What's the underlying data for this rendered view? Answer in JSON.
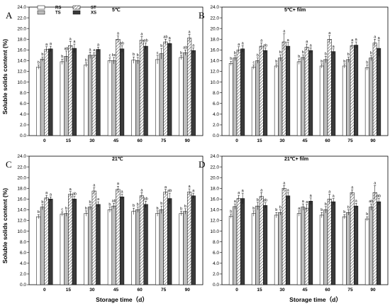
{
  "figure": {
    "x_title": "Storage time（d）",
    "y_title": "Soluble solids content (%)"
  },
  "legend": [
    {
      "label": "RS",
      "series": 0
    },
    {
      "label": "TS",
      "series": 1
    },
    {
      "label": "ST",
      "series": 2
    },
    {
      "label": "XS",
      "series": 3
    }
  ],
  "colors": {
    "RS": "#ffffff",
    "TS": "#bdbdbd",
    "ST": "hatch",
    "XS": "#3a3a3a",
    "stroke": "#000000"
  },
  "chart_data": [
    {
      "panel": "A",
      "title": "5℃",
      "type": "bar",
      "categories": [
        "0",
        "15",
        "30",
        "45",
        "60",
        "75",
        "90"
      ],
      "ylim": [
        0,
        24
      ],
      "yticks": [
        "0.0",
        "2.0",
        "4.0",
        "6.0",
        "8.0",
        "10.0",
        "12.0",
        "14.0",
        "16.0",
        "18.0",
        "20.0",
        "22.0",
        "24.0"
      ],
      "series": [
        {
          "name": "RS",
          "values": [
            12.8,
            13.8,
            13.2,
            14.0,
            14.1,
            14.2,
            14.6
          ],
          "err": [
            0.4,
            0.5,
            0.4,
            0.5,
            0.6,
            0.8,
            0.4
          ],
          "labels": [
            "b",
            "b",
            "b",
            "c",
            "b",
            "c",
            "b"
          ]
        },
        {
          "name": "TS",
          "values": [
            14.3,
            14.8,
            15.0,
            14.0,
            14.0,
            15.3,
            15.5
          ],
          "err": [
            0.4,
            1.0,
            0.6,
            0.6,
            0.6,
            1.0,
            0.5
          ],
          "labels": [
            "b",
            "ab",
            "a",
            "bc",
            "b",
            "b",
            "ab"
          ]
        },
        {
          "name": "ST",
          "values": [
            16.1,
            16.8,
            15.0,
            18.0,
            17.8,
            17.5,
            18.2
          ],
          "err": [
            0.5,
            0.8,
            0.5,
            0.6,
            0.7,
            0.5,
            0.7
          ],
          "labels": [
            "a",
            "a",
            "a",
            "a",
            "a",
            "ab",
            "a"
          ]
        },
        {
          "name": "XS",
          "values": [
            16.2,
            16.3,
            16.1,
            16.2,
            16.7,
            17.2,
            15.9
          ],
          "err": [
            0.5,
            0.8,
            0.4,
            0.6,
            0.6,
            0.6,
            0.5
          ],
          "labels": [
            "a",
            "a",
            "a",
            "ab",
            "ab",
            "a",
            "a"
          ]
        }
      ]
    },
    {
      "panel": "B",
      "title": "5℃+ film",
      "type": "bar",
      "categories": [
        "0",
        "15",
        "30",
        "45",
        "60",
        "75",
        "90"
      ],
      "ylim": [
        0,
        24
      ],
      "yticks": [
        "0.0",
        "2.0",
        "4.0",
        "6.0",
        "8.0",
        "10.0",
        "12.0",
        "14.0",
        "16.0",
        "18.0",
        "20.0",
        "22.0",
        "24.0"
      ],
      "series": [
        {
          "name": "RS",
          "values": [
            13.5,
            12.8,
            13.0,
            13.8,
            13.0,
            13.0,
            12.7
          ],
          "err": [
            0.4,
            0.4,
            0.4,
            0.5,
            0.4,
            0.4,
            0.5
          ],
          "labels": [
            "b",
            "c",
            "b",
            "b",
            "b",
            "b",
            "b"
          ]
        },
        {
          "name": "TS",
          "values": [
            14.5,
            14.0,
            14.5,
            14.6,
            14.2,
            14.2,
            14.5
          ],
          "err": [
            0.5,
            0.5,
            0.6,
            0.5,
            0.6,
            0.5,
            0.5
          ],
          "labels": [
            "b",
            "b",
            "b",
            "b",
            "b",
            "b",
            "b"
          ]
        },
        {
          "name": "ST",
          "values": [
            16.0,
            16.7,
            17.5,
            16.5,
            18.0,
            16.8,
            17.3
          ],
          "err": [
            0.6,
            0.6,
            1.5,
            0.6,
            0.7,
            0.6,
            0.7
          ],
          "labels": [
            "a",
            "a",
            "a",
            "a",
            "a",
            "a",
            "a"
          ]
        },
        {
          "name": "XS",
          "values": [
            16.2,
            15.9,
            16.7,
            15.9,
            15.7,
            16.9,
            16.3
          ],
          "err": [
            0.6,
            0.5,
            0.7,
            0.5,
            0.5,
            0.6,
            1.5
          ],
          "labels": [
            "a",
            "ab",
            "a",
            "a",
            "a",
            "a",
            "a"
          ]
        }
      ]
    },
    {
      "panel": "C",
      "title": "21℃",
      "type": "bar",
      "categories": [
        "0",
        "15",
        "30",
        "45",
        "60",
        "75",
        "90"
      ],
      "ylim": [
        0,
        24
      ],
      "yticks": [
        "0.0",
        "2.0",
        "4.0",
        "6.0",
        "8.0",
        "10.0",
        "12.0",
        "14.0",
        "16.0",
        "18.0",
        "20.0",
        "22.0",
        "24.0"
      ],
      "series": [
        {
          "name": "RS",
          "values": [
            12.7,
            13.2,
            13.3,
            14.0,
            13.7,
            13.3,
            13.3
          ],
          "err": [
            0.4,
            0.4,
            0.5,
            0.5,
            0.6,
            0.5,
            0.4
          ],
          "labels": [
            "b",
            "c",
            "b",
            "b",
            "b",
            "b",
            "b"
          ]
        },
        {
          "name": "TS",
          "values": [
            14.5,
            13.3,
            14.5,
            14.7,
            14.0,
            14.0,
            13.7
          ],
          "err": [
            0.5,
            0.5,
            0.5,
            0.5,
            0.5,
            0.7,
            0.5
          ],
          "labels": [
            "b",
            "b",
            "b",
            "ab",
            "b",
            "b",
            "b"
          ]
        },
        {
          "name": "ST",
          "values": [
            16.2,
            16.9,
            17.5,
            17.8,
            16.6,
            17.3,
            17.3
          ],
          "err": [
            0.5,
            0.5,
            0.6,
            0.6,
            0.6,
            0.5,
            0.6
          ],
          "labels": [
            "a",
            "a",
            "a",
            "a",
            "a",
            "a",
            "a"
          ]
        },
        {
          "name": "XS",
          "values": [
            16.0,
            16.0,
            15.0,
            16.4,
            15.0,
            16.1,
            16.6
          ],
          "err": [
            0.4,
            0.5,
            0.5,
            0.5,
            0.6,
            1.0,
            0.5
          ],
          "labels": [
            "a",
            "ab",
            "a",
            "a",
            "ab",
            "ab",
            "a"
          ]
        }
      ]
    },
    {
      "panel": "D",
      "title": "21℃+ film",
      "type": "bar",
      "categories": [
        "0",
        "15",
        "30",
        "45",
        "60",
        "75",
        "90"
      ],
      "ylim": [
        0,
        24
      ],
      "yticks": [
        "0.0",
        "2.0",
        "4.0",
        "6.0",
        "8.0",
        "10.0",
        "12.0",
        "14.0",
        "16.0",
        "18.0",
        "20.0",
        "22.0",
        "24.0"
      ],
      "series": [
        {
          "name": "RS",
          "values": [
            12.8,
            13.3,
            13.0,
            13.3,
            13.0,
            12.7,
            12.3
          ],
          "err": [
            0.4,
            0.5,
            0.5,
            0.5,
            0.5,
            0.4,
            0.4
          ],
          "labels": [
            "b",
            "b",
            "b",
            "a",
            "b",
            "b",
            "b"
          ]
        },
        {
          "name": "TS",
          "values": [
            14.6,
            14.7,
            13.5,
            14.5,
            14.0,
            13.5,
            14.5
          ],
          "err": [
            0.5,
            0.7,
            0.5,
            0.6,
            0.6,
            0.5,
            0.6
          ],
          "labels": [
            "a",
            "b",
            "b",
            "a",
            "b",
            "b",
            "ab"
          ]
        },
        {
          "name": "ST",
          "values": [
            16.1,
            16.5,
            18.0,
            14.3,
            16.0,
            17.2,
            17.2
          ],
          "err": [
            0.6,
            0.7,
            0.5,
            0.7,
            0.9,
            0.5,
            1.3
          ],
          "labels": [
            "a",
            "a",
            "a",
            "a",
            "a",
            "a",
            "a"
          ]
        },
        {
          "name": "XS",
          "values": [
            16.1,
            14.8,
            16.6,
            15.6,
            15.5,
            14.7,
            15.5
          ],
          "err": [
            1.0,
            0.5,
            0.6,
            0.6,
            0.6,
            0.5,
            0.6
          ],
          "labels": [
            "a",
            "ab",
            "a",
            "a",
            "a",
            "a",
            "ab"
          ]
        }
      ]
    }
  ]
}
